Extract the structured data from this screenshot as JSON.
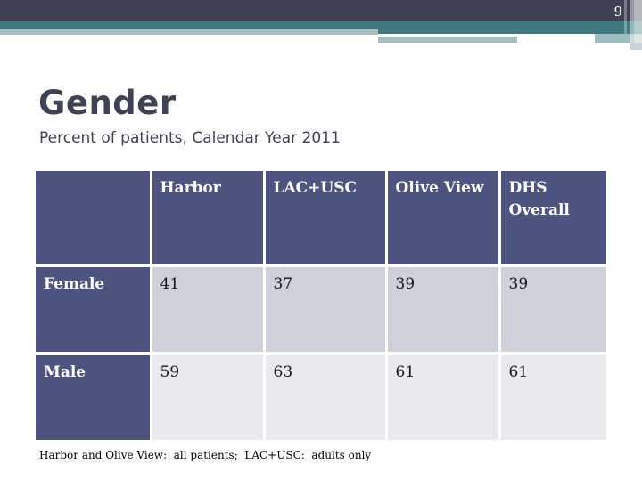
{
  "page": {
    "number": "9"
  },
  "header": {
    "title": "Gender",
    "subtitle": "Percent of patients, Calendar Year 2011"
  },
  "chart_data": {
    "type": "table",
    "title": "Gender — Percent of patients, Calendar Year 2011",
    "columns": [
      "",
      "Harbor",
      "LAC+USC",
      "Olive View",
      "DHS Overall"
    ],
    "rows": [
      {
        "label": "Female",
        "values": [
          "41",
          "37",
          "39",
          "39"
        ]
      },
      {
        "label": "Male",
        "values": [
          "59",
          "63",
          "61",
          "61"
        ]
      }
    ]
  },
  "table": {
    "columns": [
      "",
      "Harbor",
      "LAC+USC",
      "Olive View",
      "DHS Overall"
    ],
    "rows": [
      {
        "label": "Female",
        "values": [
          "41",
          "37",
          "39",
          "39"
        ]
      },
      {
        "label": "Male",
        "values": [
          "59",
          "63",
          "61",
          "61"
        ]
      }
    ]
  },
  "footnote": "Harbor and Olive View:  all patients;  LAC+USC:  adults only",
  "colors": {
    "banner_dark": "#3f4254",
    "banner_teal": "#3e7a80",
    "banner_light": "#a7bfc1",
    "table_header_bg": "#4e5480",
    "row_female_bg": "#ced1d9",
    "row_male_bg": "#e9e9ee",
    "title_text": "#3f4254"
  }
}
